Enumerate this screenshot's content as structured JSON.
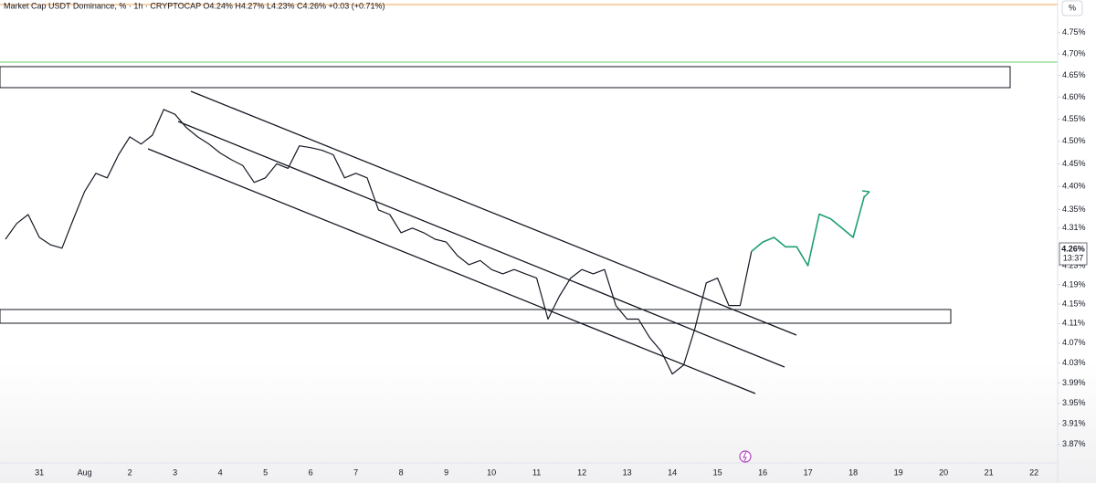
{
  "chart_data": {
    "type": "line",
    "header": "Market Cap USDT Dominance, % · 1h · CRYPTOCAP  O4.24%  H4.27%  L4.23%  C4.26%  +0.03 (+0.71%)",
    "axis_unit": "%",
    "price_label": "4.26%",
    "countdown": "13:37",
    "log_scale": true,
    "grid": false,
    "ylim": [
      3.838,
      4.828
    ],
    "yticks": [
      {
        "value": 4.75,
        "label": "4.75%"
      },
      {
        "value": 4.7,
        "label": "4.70%"
      },
      {
        "value": 4.65,
        "label": "4.65%"
      },
      {
        "value": 4.6,
        "label": "4.60%"
      },
      {
        "value": 4.55,
        "label": "4.55%"
      },
      {
        "value": 4.5,
        "label": "4.50%"
      },
      {
        "value": 4.45,
        "label": "4.45%"
      },
      {
        "value": 4.4,
        "label": "4.40%"
      },
      {
        "value": 4.35,
        "label": "4.35%"
      },
      {
        "value": 4.31,
        "label": "4.31%"
      },
      {
        "value": 4.23,
        "label": "4.23%"
      },
      {
        "value": 4.19,
        "label": "4.19%"
      },
      {
        "value": 4.15,
        "label": "4.15%"
      },
      {
        "value": 4.11,
        "label": "4.11%"
      },
      {
        "value": 4.07,
        "label": "4.07%"
      },
      {
        "value": 4.03,
        "label": "4.03%"
      },
      {
        "value": 3.99,
        "label": "3.99%"
      },
      {
        "value": 3.95,
        "label": "3.95%"
      },
      {
        "value": 3.91,
        "label": "3.91%"
      },
      {
        "value": 3.87,
        "label": "3.87%"
      }
    ],
    "categories": [
      null,
      null,
      null,
      "31",
      null,
      null,
      null,
      "Aug",
      null,
      null,
      null,
      "2",
      null,
      null,
      null,
      "3",
      null,
      null,
      null,
      "4",
      null,
      null,
      null,
      "5",
      null,
      null,
      null,
      "6",
      null,
      null,
      null,
      "7",
      null,
      null,
      null,
      "8",
      null,
      null,
      null,
      "9",
      null,
      null,
      null,
      "10",
      null,
      null,
      null,
      "11",
      null,
      null,
      null,
      "12",
      null,
      null,
      null,
      "13",
      null,
      null,
      null,
      "14",
      null,
      null,
      null,
      "15",
      null,
      null,
      null,
      "16",
      null,
      null,
      null,
      "17",
      null,
      null,
      null,
      "18",
      null,
      null,
      null,
      "19",
      null,
      null,
      null,
      "20",
      null,
      null,
      null,
      "21",
      null,
      null,
      null,
      "22"
    ],
    "series": [
      {
        "color": "#131722",
        "values": [
          4.286,
          4.32,
          4.339,
          4.29,
          4.274,
          4.267,
          4.329,
          4.389,
          4.429,
          4.419,
          4.47,
          4.51,
          4.494,
          4.514,
          4.572,
          4.561,
          4.531,
          4.51,
          4.494,
          4.474,
          4.459,
          4.446,
          4.409,
          4.419,
          4.45,
          4.44,
          4.49,
          4.486,
          4.48,
          4.47,
          4.419,
          4.429,
          4.419,
          4.349,
          4.339,
          4.3,
          4.31,
          4.3,
          4.286,
          4.28,
          4.251,
          4.232,
          4.241,
          4.222,
          4.213,
          4.222,
          4.213,
          4.204,
          4.119,
          4.166,
          4.204,
          4.222,
          4.213,
          4.222,
          4.147,
          4.119,
          4.119,
          4.081,
          4.054,
          4.008,
          4.026,
          4.1,
          4.194,
          4.204,
          4.147,
          4.147,
          4.26,
          null,
          null,
          null,
          null,
          null,
          null,
          null,
          null,
          null,
          null,
          null,
          null,
          null,
          null,
          null,
          null,
          null,
          null,
          null,
          null,
          null,
          null,
          null,
          null,
          null
        ]
      },
      {
        "color": "#1e9e74",
        "values": [
          null,
          null,
          null,
          null,
          null,
          null,
          null,
          null,
          null,
          null,
          null,
          null,
          null,
          null,
          null,
          null,
          null,
          null,
          null,
          null,
          null,
          null,
          null,
          null,
          null,
          null,
          null,
          null,
          null,
          null,
          null,
          null,
          null,
          null,
          null,
          null,
          null,
          null,
          null,
          null,
          null,
          null,
          null,
          null,
          null,
          null,
          null,
          null,
          null,
          null,
          null,
          null,
          null,
          null,
          null,
          null,
          null,
          null,
          null,
          null,
          null,
          null,
          null,
          null,
          null,
          null,
          4.26,
          4.28,
          4.29,
          4.27,
          4.27,
          4.23,
          4.34,
          4.33,
          4.31,
          4.29,
          4.38,
          null,
          null,
          null,
          null,
          null,
          null,
          null,
          null,
          null,
          null,
          null,
          null,
          null,
          null,
          null
        ]
      }
    ]
  }
}
